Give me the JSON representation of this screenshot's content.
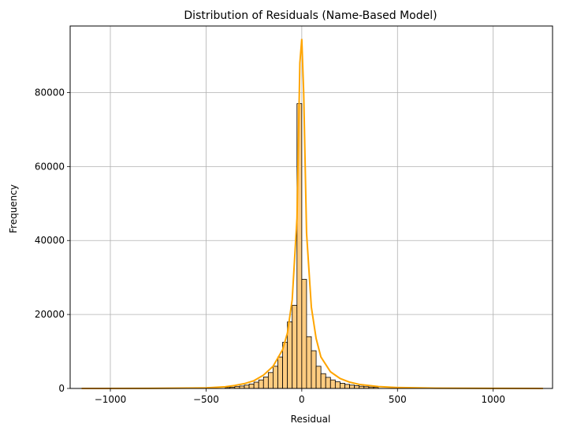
{
  "chart_data": {
    "type": "bar",
    "title": "Distribution of Residuals (Name-Based Model)",
    "xlabel": "Residual",
    "ylabel": "Frequency",
    "xlim": [
      -1210,
      1310
    ],
    "ylim": [
      0,
      98000
    ],
    "grid": true,
    "bar_color": "#ffcc80",
    "bar_edge_color": "#000000",
    "kde_color": "#ffa500",
    "x_ticks": [
      -1000,
      -500,
      0,
      500,
      1000
    ],
    "x_tick_labels": [
      "−1000",
      "−500",
      "0",
      "500",
      "1000"
    ],
    "y_ticks": [
      0,
      20000,
      40000,
      60000,
      80000
    ],
    "y_tick_labels": [
      "0",
      "20000",
      "40000",
      "60000",
      "80000"
    ],
    "histogram": {
      "bin_width": 25,
      "bins": [
        {
          "x0": -400,
          "x1": -375,
          "count": 250
        },
        {
          "x0": -375,
          "x1": -350,
          "count": 350
        },
        {
          "x0": -350,
          "x1": -325,
          "count": 500
        },
        {
          "x0": -325,
          "x1": -300,
          "count": 650
        },
        {
          "x0": -300,
          "x1": -275,
          "count": 900
        },
        {
          "x0": -275,
          "x1": -250,
          "count": 1200
        },
        {
          "x0": -250,
          "x1": -225,
          "count": 1700
        },
        {
          "x0": -225,
          "x1": -200,
          "count": 2300
        },
        {
          "x0": -200,
          "x1": -175,
          "count": 3100
        },
        {
          "x0": -175,
          "x1": -150,
          "count": 4300
        },
        {
          "x0": -150,
          "x1": -125,
          "count": 6000
        },
        {
          "x0": -125,
          "x1": -100,
          "count": 8500
        },
        {
          "x0": -100,
          "x1": -75,
          "count": 12500
        },
        {
          "x0": -75,
          "x1": -50,
          "count": 18000
        },
        {
          "x0": -50,
          "x1": -25,
          "count": 22500
        },
        {
          "x0": -25,
          "x1": 0,
          "count": 77000
        },
        {
          "x0": 0,
          "x1": 25,
          "count": 29500
        },
        {
          "x0": 25,
          "x1": 50,
          "count": 14000
        },
        {
          "x0": 50,
          "x1": 75,
          "count": 10200
        },
        {
          "x0": 75,
          "x1": 100,
          "count": 6000
        },
        {
          "x0": 100,
          "x1": 125,
          "count": 4000
        },
        {
          "x0": 125,
          "x1": 150,
          "count": 3000
        },
        {
          "x0": 150,
          "x1": 175,
          "count": 2300
        },
        {
          "x0": 175,
          "x1": 200,
          "count": 1800
        },
        {
          "x0": 200,
          "x1": 225,
          "count": 1400
        },
        {
          "x0": 225,
          "x1": 250,
          "count": 1100
        },
        {
          "x0": 250,
          "x1": 275,
          "count": 900
        },
        {
          "x0": 275,
          "x1": 300,
          "count": 750
        },
        {
          "x0": 300,
          "x1": 325,
          "count": 600
        },
        {
          "x0": 325,
          "x1": 350,
          "count": 480
        },
        {
          "x0": 350,
          "x1": 375,
          "count": 380
        },
        {
          "x0": 375,
          "x1": 400,
          "count": 300
        }
      ]
    },
    "kde": {
      "x": [
        -1150,
        -800,
        -500,
        -400,
        -350,
        -300,
        -250,
        -200,
        -150,
        -100,
        -75,
        -50,
        -25,
        -10,
        0,
        10,
        25,
        50,
        75,
        100,
        150,
        200,
        250,
        300,
        400,
        500,
        700,
        1000,
        1260
      ],
      "y": [
        0,
        30,
        150,
        450,
        800,
        1300,
        2100,
        3600,
        6000,
        10500,
        15000,
        24000,
        46000,
        88000,
        94500,
        80000,
        42000,
        22000,
        13500,
        8500,
        4500,
        2700,
        1700,
        1100,
        500,
        250,
        80,
        20,
        0
      ]
    }
  }
}
